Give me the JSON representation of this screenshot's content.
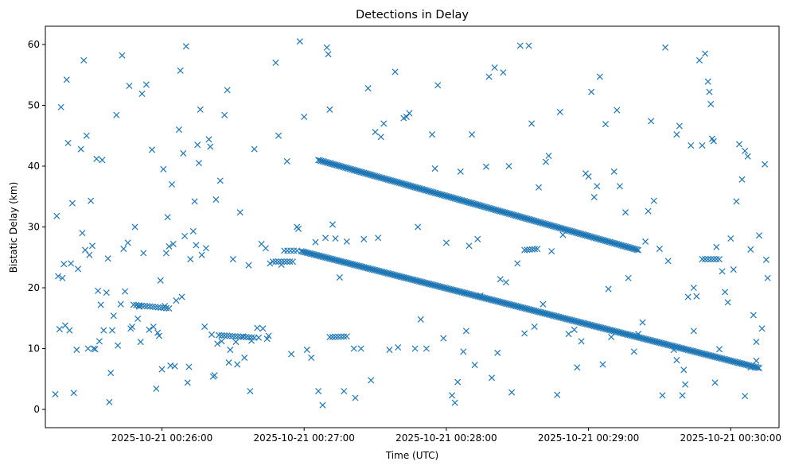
{
  "chart_data": {
    "type": "scatter",
    "title": "Detections in Delay",
    "xlabel": "Time (UTC)",
    "ylabel": "Bistatic Delay (km)",
    "marker": "x",
    "color": "#1f77b4",
    "x_unit": "minutes after 2025-10-21 00:25:00 UTC",
    "xlim": [
      0.18,
      5.34
    ],
    "ylim": [
      -3.0,
      63.0
    ],
    "x_ticks": [
      {
        "value": 1,
        "label": "2025-10-21 00:26:00"
      },
      {
        "value": 2,
        "label": "2025-10-21 00:27:00"
      },
      {
        "value": 3,
        "label": "2025-10-21 00:28:00"
      },
      {
        "value": 4,
        "label": "2025-10-21 00:29:00"
      },
      {
        "value": 5,
        "label": "2025-10-21 00:30:00"
      }
    ],
    "y_ticks": [
      {
        "value": 0,
        "label": "0"
      },
      {
        "value": 10,
        "label": "10"
      },
      {
        "value": 20,
        "label": "20"
      },
      {
        "value": 30,
        "label": "30"
      },
      {
        "value": 40,
        "label": "40"
      },
      {
        "value": 50,
        "label": "50"
      },
      {
        "value": 60,
        "label": "60"
      }
    ],
    "tracks": [
      {
        "name": "upper-trace",
        "x_start": 2.1,
        "x_end": 4.35,
        "y_start": 41.0,
        "y_end": 26.2,
        "step": 0.01
      },
      {
        "name": "middle-trace",
        "x_start": 1.98,
        "x_end": 5.2,
        "y_start": 26.0,
        "y_end": 6.8,
        "step": 0.01
      },
      {
        "name": "low-trace-segment-1",
        "x_start": 0.8,
        "x_end": 1.05,
        "y_start": 17.2,
        "y_end": 16.6,
        "step": 0.02
      },
      {
        "name": "low-trace-segment-2",
        "x_start": 1.4,
        "x_end": 1.65,
        "y_start": 12.2,
        "y_end": 11.8,
        "step": 0.02
      },
      {
        "name": "flat-cluster",
        "x_start": 1.78,
        "x_end": 1.92,
        "y_start": 24.3,
        "y_end": 24.3,
        "step": 0.02
      },
      {
        "name": "flat-cluster-2",
        "x_start": 1.86,
        "x_end": 1.95,
        "y_start": 26.1,
        "y_end": 26.1,
        "step": 0.02
      },
      {
        "name": "flat-cluster-3",
        "x_start": 4.8,
        "x_end": 4.92,
        "y_start": 24.7,
        "y_end": 24.7,
        "step": 0.02
      },
      {
        "name": "flat-cluster-4",
        "x_start": 2.18,
        "x_end": 2.3,
        "y_start": 11.9,
        "y_end": 12.0,
        "step": 0.02
      },
      {
        "name": "flat-cluster-5",
        "x_start": 3.55,
        "x_end": 3.64,
        "y_start": 26.2,
        "y_end": 26.4,
        "step": 0.02
      }
    ],
    "points": [
      [
        0.25,
        2.5
      ],
      [
        0.26,
        31.8
      ],
      [
        0.27,
        21.9
      ],
      [
        0.28,
        13.2
      ],
      [
        0.29,
        49.7
      ],
      [
        0.3,
        21.6
      ],
      [
        0.31,
        23.9
      ],
      [
        0.32,
        13.8
      ],
      [
        0.33,
        54.2
      ],
      [
        0.34,
        43.8
      ],
      [
        0.35,
        13.0
      ],
      [
        0.36,
        24.0
      ],
      [
        0.37,
        33.9
      ],
      [
        0.38,
        2.7
      ],
      [
        0.4,
        9.8
      ],
      [
        0.41,
        23.1
      ],
      [
        0.43,
        42.8
      ],
      [
        0.44,
        29.0
      ],
      [
        0.45,
        57.4
      ],
      [
        0.46,
        26.2
      ],
      [
        0.47,
        45.0
      ],
      [
        0.48,
        10.0
      ],
      [
        0.49,
        25.4
      ],
      [
        0.5,
        34.3
      ],
      [
        0.51,
        26.9
      ],
      [
        0.52,
        10.0
      ],
      [
        0.53,
        9.9
      ],
      [
        0.54,
        41.2
      ],
      [
        0.55,
        19.5
      ],
      [
        0.56,
        11.2
      ],
      [
        0.57,
        17.2
      ],
      [
        0.58,
        41.0
      ],
      [
        0.59,
        13.0
      ],
      [
        0.61,
        19.2
      ],
      [
        0.62,
        24.8
      ],
      [
        0.63,
        1.2
      ],
      [
        0.64,
        6.0
      ],
      [
        0.65,
        13.0
      ],
      [
        0.66,
        15.4
      ],
      [
        0.68,
        48.4
      ],
      [
        0.69,
        10.5
      ],
      [
        0.71,
        17.3
      ],
      [
        0.72,
        58.2
      ],
      [
        0.73,
        26.4
      ],
      [
        0.74,
        19.4
      ],
      [
        0.76,
        27.4
      ],
      [
        0.77,
        53.2
      ],
      [
        0.78,
        13.3
      ],
      [
        0.79,
        13.6
      ],
      [
        0.81,
        30.0
      ],
      [
        0.83,
        14.9
      ],
      [
        0.84,
        16.9
      ],
      [
        0.85,
        11.1
      ],
      [
        0.86,
        51.9
      ],
      [
        0.87,
        25.7
      ],
      [
        0.89,
        53.4
      ],
      [
        0.91,
        13.1
      ],
      [
        0.93,
        42.7
      ],
      [
        0.94,
        13.6
      ],
      [
        0.96,
        3.4
      ],
      [
        0.97,
        12.6
      ],
      [
        0.98,
        12.1
      ],
      [
        0.99,
        21.2
      ],
      [
        1.0,
        6.6
      ],
      [
        1.01,
        39.5
      ],
      [
        1.02,
        17.0
      ],
      [
        1.03,
        25.7
      ],
      [
        1.04,
        31.6
      ],
      [
        1.05,
        26.8
      ],
      [
        1.06,
        7.2
      ],
      [
        1.07,
        37.0
      ],
      [
        1.08,
        27.2
      ],
      [
        1.09,
        7.1
      ],
      [
        1.1,
        17.9
      ],
      [
        1.12,
        46.0
      ],
      [
        1.13,
        55.7
      ],
      [
        1.14,
        18.5
      ],
      [
        1.15,
        42.1
      ],
      [
        1.16,
        28.5
      ],
      [
        1.17,
        59.7
      ],
      [
        1.18,
        4.4
      ],
      [
        1.19,
        7.0
      ],
      [
        1.2,
        24.7
      ],
      [
        1.22,
        29.3
      ],
      [
        1.23,
        34.2
      ],
      [
        1.24,
        27.0
      ],
      [
        1.25,
        43.5
      ],
      [
        1.26,
        40.5
      ],
      [
        1.27,
        49.3
      ],
      [
        1.28,
        25.4
      ],
      [
        1.3,
        13.6
      ],
      [
        1.31,
        26.5
      ],
      [
        1.33,
        44.4
      ],
      [
        1.34,
        43.2
      ],
      [
        1.35,
        12.3
      ],
      [
        1.36,
        5.4
      ],
      [
        1.37,
        5.6
      ],
      [
        1.38,
        34.5
      ],
      [
        1.39,
        10.8
      ],
      [
        1.41,
        37.6
      ],
      [
        1.42,
        11.2
      ],
      [
        1.44,
        48.4
      ],
      [
        1.46,
        52.5
      ],
      [
        1.47,
        7.7
      ],
      [
        1.48,
        9.8
      ],
      [
        1.5,
        24.7
      ],
      [
        1.52,
        11.1
      ],
      [
        1.53,
        7.4
      ],
      [
        1.55,
        32.4
      ],
      [
        1.57,
        12.0
      ],
      [
        1.58,
        8.5
      ],
      [
        1.61,
        23.7
      ],
      [
        1.62,
        3.0
      ],
      [
        1.63,
        11.3
      ],
      [
        1.65,
        42.8
      ],
      [
        1.67,
        13.4
      ],
      [
        1.68,
        11.8
      ],
      [
        1.7,
        27.2
      ],
      [
        1.71,
        13.3
      ],
      [
        1.73,
        26.5
      ],
      [
        1.74,
        11.6
      ],
      [
        1.75,
        12.1
      ],
      [
        1.76,
        24.0
      ],
      [
        1.8,
        57.0
      ],
      [
        1.82,
        45.0
      ],
      [
        1.84,
        23.8
      ],
      [
        1.88,
        40.8
      ],
      [
        1.91,
        9.1
      ],
      [
        1.95,
        30.0
      ],
      [
        1.96,
        29.7
      ],
      [
        1.97,
        60.5
      ],
      [
        2.0,
        48.1
      ],
      [
        2.02,
        9.8
      ],
      [
        2.05,
        8.5
      ],
      [
        2.08,
        27.5
      ],
      [
        2.1,
        3.0
      ],
      [
        2.13,
        0.7
      ],
      [
        2.15,
        28.2
      ],
      [
        2.16,
        59.5
      ],
      [
        2.17,
        58.4
      ],
      [
        2.18,
        49.3
      ],
      [
        2.2,
        30.4
      ],
      [
        2.22,
        28.1
      ],
      [
        2.25,
        21.7
      ],
      [
        2.28,
        3.0
      ],
      [
        2.3,
        27.6
      ],
      [
        2.35,
        10.0
      ],
      [
        2.36,
        1.9
      ],
      [
        2.4,
        10.0
      ],
      [
        2.42,
        28.0
      ],
      [
        2.45,
        52.8
      ],
      [
        2.47,
        4.8
      ],
      [
        2.5,
        45.6
      ],
      [
        2.52,
        28.2
      ],
      [
        2.54,
        44.8
      ],
      [
        2.56,
        47.0
      ],
      [
        2.6,
        9.8
      ],
      [
        2.64,
        55.5
      ],
      [
        2.66,
        10.2
      ],
      [
        2.7,
        47.9
      ],
      [
        2.72,
        48.1
      ],
      [
        2.74,
        48.7
      ],
      [
        2.78,
        10.0
      ],
      [
        2.8,
        30.0
      ],
      [
        2.82,
        14.8
      ],
      [
        2.86,
        10.0
      ],
      [
        2.9,
        45.2
      ],
      [
        2.92,
        39.6
      ],
      [
        2.94,
        53.3
      ],
      [
        2.98,
        11.7
      ],
      [
        3.0,
        27.4
      ],
      [
        3.04,
        2.3
      ],
      [
        3.06,
        1.1
      ],
      [
        3.08,
        4.5
      ],
      [
        3.1,
        39.1
      ],
      [
        3.12,
        9.5
      ],
      [
        3.14,
        12.9
      ],
      [
        3.16,
        26.9
      ],
      [
        3.18,
        45.2
      ],
      [
        3.2,
        7.3
      ],
      [
        3.22,
        28.0
      ],
      [
        3.24,
        18.7
      ],
      [
        3.28,
        39.9
      ],
      [
        3.3,
        54.7
      ],
      [
        3.32,
        5.2
      ],
      [
        3.34,
        56.2
      ],
      [
        3.36,
        9.3
      ],
      [
        3.38,
        21.4
      ],
      [
        3.4,
        55.4
      ],
      [
        3.42,
        20.9
      ],
      [
        3.44,
        40.0
      ],
      [
        3.46,
        2.8
      ],
      [
        3.5,
        24.0
      ],
      [
        3.52,
        59.8
      ],
      [
        3.55,
        12.5
      ],
      [
        3.58,
        59.8
      ],
      [
        3.6,
        47.0
      ],
      [
        3.62,
        13.6
      ],
      [
        3.65,
        36.5
      ],
      [
        3.68,
        17.3
      ],
      [
        3.7,
        40.7
      ],
      [
        3.72,
        41.7
      ],
      [
        3.74,
        26.0
      ],
      [
        3.78,
        2.4
      ],
      [
        3.8,
        48.9
      ],
      [
        3.82,
        28.7
      ],
      [
        3.86,
        12.4
      ],
      [
        3.9,
        13.1
      ],
      [
        3.92,
        6.9
      ],
      [
        3.95,
        11.2
      ],
      [
        3.98,
        38.8
      ],
      [
        4.0,
        38.3
      ],
      [
        4.02,
        52.2
      ],
      [
        4.04,
        34.9
      ],
      [
        4.06,
        36.7
      ],
      [
        4.08,
        54.7
      ],
      [
        4.1,
        7.4
      ],
      [
        4.12,
        46.9
      ],
      [
        4.14,
        19.8
      ],
      [
        4.16,
        11.9
      ],
      [
        4.18,
        39.1
      ],
      [
        4.2,
        49.2
      ],
      [
        4.22,
        36.7
      ],
      [
        4.26,
        32.4
      ],
      [
        4.28,
        21.6
      ],
      [
        4.32,
        9.5
      ],
      [
        4.35,
        12.4
      ],
      [
        4.38,
        14.3
      ],
      [
        4.4,
        27.6
      ],
      [
        4.42,
        32.6
      ],
      [
        4.44,
        47.4
      ],
      [
        4.46,
        34.3
      ],
      [
        4.5,
        26.4
      ],
      [
        4.52,
        2.3
      ],
      [
        4.54,
        59.5
      ],
      [
        4.56,
        24.4
      ],
      [
        4.6,
        9.8
      ],
      [
        4.62,
        45.2
      ],
      [
        4.64,
        46.6
      ],
      [
        4.66,
        2.3
      ],
      [
        4.67,
        6.5
      ],
      [
        4.68,
        4.1
      ],
      [
        4.7,
        18.5
      ],
      [
        4.72,
        43.4
      ],
      [
        4.74,
        20.0
      ],
      [
        4.76,
        18.6
      ],
      [
        4.78,
        57.4
      ],
      [
        4.8,
        43.4
      ],
      [
        4.82,
        58.5
      ],
      [
        4.84,
        53.9
      ],
      [
        4.85,
        52.2
      ],
      [
        4.86,
        50.2
      ],
      [
        4.87,
        44.5
      ],
      [
        4.88,
        44.1
      ],
      [
        4.89,
        4.4
      ],
      [
        4.9,
        26.7
      ],
      [
        4.92,
        9.9
      ],
      [
        4.94,
        22.7
      ],
      [
        4.96,
        19.3
      ],
      [
        4.98,
        17.6
      ],
      [
        5.0,
        28.1
      ],
      [
        5.02,
        23.0
      ],
      [
        5.04,
        34.2
      ],
      [
        5.06,
        43.6
      ],
      [
        5.08,
        37.8
      ],
      [
        5.1,
        42.5
      ],
      [
        5.12,
        41.6
      ],
      [
        5.14,
        26.3
      ],
      [
        5.16,
        15.5
      ],
      [
        5.18,
        8.0
      ],
      [
        5.2,
        28.6
      ],
      [
        5.22,
        13.3
      ],
      [
        5.24,
        40.3
      ],
      [
        5.25,
        24.6
      ],
      [
        5.26,
        21.6
      ],
      [
        5.1,
        2.2
      ],
      [
        5.14,
        6.9
      ],
      [
        5.18,
        11.1
      ],
      [
        4.62,
        8.1
      ],
      [
        4.74,
        12.9
      ]
    ]
  }
}
